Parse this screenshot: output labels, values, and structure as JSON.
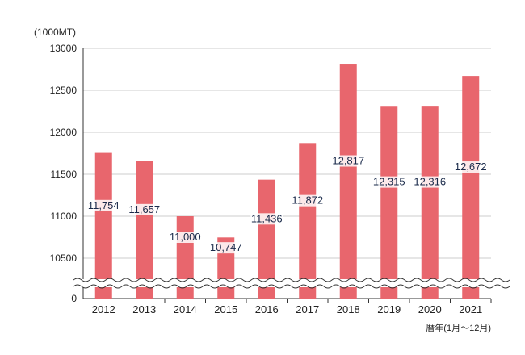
{
  "chart_data": {
    "type": "bar",
    "unit_label": "(1000MT)",
    "xlabel": "暦年(1月〜12月)",
    "ylabel": "",
    "categories": [
      "2012",
      "2013",
      "2014",
      "2015",
      "2016",
      "2017",
      "2018",
      "2019",
      "2020",
      "2021"
    ],
    "values": [
      11754,
      11657,
      11000,
      10747,
      11436,
      11872,
      12817,
      12315,
      12316,
      12672
    ],
    "value_labels": [
      "11,754",
      "11,657",
      "11,000",
      "10,747",
      "11,436",
      "11,872",
      "12,817",
      "12,315",
      "12,316",
      "12,672"
    ],
    "ylim": [
      10500,
      13000
    ],
    "ytick_labels": [
      "0",
      "10500",
      "11000",
      "11500",
      "12000",
      "12500",
      "13000"
    ],
    "ytick_values": [
      null,
      10500,
      11000,
      11500,
      12000,
      12500,
      13000
    ],
    "axis_break": true,
    "grid": "horizontal",
    "legend": "none",
    "bar_color": "#e8666d",
    "grid_color": "#cccccc",
    "label_color": "#1a2a4a"
  }
}
